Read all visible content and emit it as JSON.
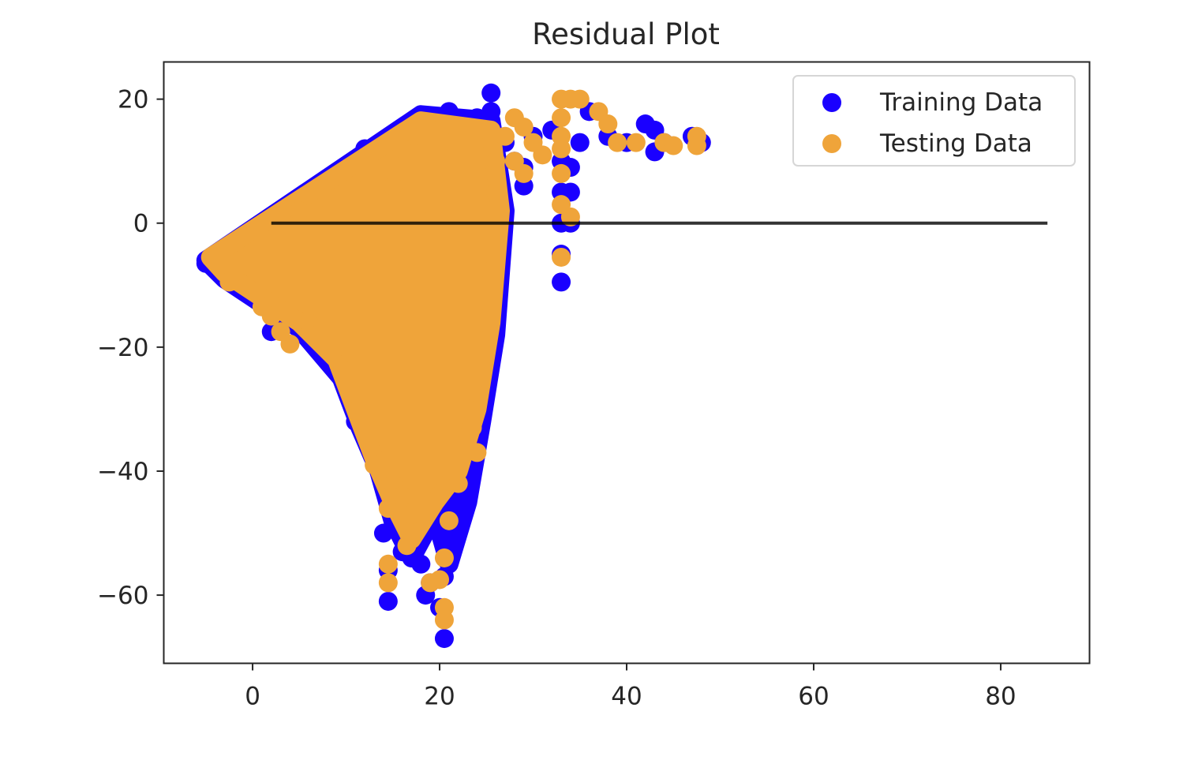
{
  "chart_data": {
    "type": "scatter",
    "title": "Residual Plot",
    "xlabel": "",
    "ylabel": "",
    "xlim": [
      -9.5,
      89.5
    ],
    "ylim": [
      -71,
      26
    ],
    "xticks": [
      0,
      20,
      40,
      60,
      80
    ],
    "yticks": [
      20,
      0,
      -20,
      -40,
      -60
    ],
    "xtick_labels": [
      "0",
      "20",
      "40",
      "60",
      "80"
    ],
    "ytick_labels": [
      "20",
      "0",
      "−20",
      "−40",
      "−60"
    ],
    "grid": false,
    "legend_position": "top-right",
    "hline": {
      "y": 0,
      "xmin": 2,
      "xmax": 85,
      "color": "#000000"
    },
    "series": [
      {
        "name": "Training Data",
        "color": "#1a00ff",
        "points": [
          [
            -5,
            -6.5
          ],
          [
            -4,
            -7
          ],
          [
            -3,
            -8.5
          ],
          [
            -1,
            -9
          ],
          [
            1,
            -12
          ],
          [
            3,
            -15
          ],
          [
            2,
            -17.5
          ],
          [
            5,
            -16
          ],
          [
            7,
            -18
          ],
          [
            8,
            -21
          ],
          [
            10,
            -23
          ],
          [
            11,
            -27
          ],
          [
            11,
            -32
          ],
          [
            13,
            -30
          ],
          [
            13,
            -35
          ],
          [
            14,
            -38
          ],
          [
            14,
            -42
          ],
          [
            14,
            -50
          ],
          [
            14.5,
            -56
          ],
          [
            14.5,
            -61
          ],
          [
            15,
            -45
          ],
          [
            16,
            -48
          ],
          [
            16,
            -53
          ],
          [
            18,
            -40
          ],
          [
            18,
            -48
          ],
          [
            18,
            -55
          ],
          [
            18.5,
            -60
          ],
          [
            19,
            -58
          ],
          [
            20,
            -62
          ],
          [
            20.5,
            -67
          ],
          [
            20.5,
            -57
          ],
          [
            21,
            -49
          ],
          [
            22,
            -45
          ],
          [
            22,
            -40
          ],
          [
            23,
            -44
          ],
          [
            22,
            -35
          ],
          [
            23,
            -37
          ],
          [
            24,
            -27
          ],
          [
            25,
            -23
          ],
          [
            25,
            -18
          ],
          [
            25.5,
            -12
          ],
          [
            25.5,
            -6
          ],
          [
            26,
            0
          ],
          [
            26,
            5
          ],
          [
            25.5,
            10
          ],
          [
            25.5,
            15
          ],
          [
            25.5,
            18
          ],
          [
            25.5,
            21
          ],
          [
            21,
            18
          ],
          [
            24,
            17
          ],
          [
            27,
            13
          ],
          [
            28,
            10
          ],
          [
            29,
            6
          ],
          [
            29,
            9
          ],
          [
            30,
            14
          ],
          [
            32,
            15
          ],
          [
            33,
            10
          ],
          [
            33,
            5
          ],
          [
            33,
            0
          ],
          [
            33,
            -5
          ],
          [
            33,
            -9.5
          ],
          [
            34,
            0
          ],
          [
            34,
            5
          ],
          [
            34,
            9
          ],
          [
            35,
            13
          ],
          [
            36,
            18
          ],
          [
            38,
            14
          ],
          [
            40,
            13
          ],
          [
            42,
            16
          ],
          [
            43,
            11.5
          ],
          [
            43,
            15
          ],
          [
            44,
            13
          ],
          [
            47,
            14
          ],
          [
            48,
            13
          ],
          [
            12,
            12
          ],
          [
            10,
            6
          ],
          [
            16,
            14
          ],
          [
            18,
            16
          ],
          [
            20,
            10
          ],
          [
            22,
            5
          ]
        ]
      },
      {
        "name": "Testing Data",
        "color": "#efa43a",
        "points": [
          [
            -4,
            -6
          ],
          [
            -2,
            -8
          ],
          [
            -2.5,
            -9.5
          ],
          [
            0,
            -7
          ],
          [
            0.5,
            -11
          ],
          [
            1,
            -13.5
          ],
          [
            2,
            -15
          ],
          [
            3,
            -17.5
          ],
          [
            4,
            -19.5
          ],
          [
            6,
            -16
          ],
          [
            7,
            -18
          ],
          [
            9,
            -20
          ],
          [
            10,
            -24
          ],
          [
            11,
            -27.5
          ],
          [
            12,
            -30
          ],
          [
            13,
            -34
          ],
          [
            13,
            -39
          ],
          [
            14,
            -40
          ],
          [
            14.5,
            -46
          ],
          [
            14.5,
            -55
          ],
          [
            14.5,
            -58
          ],
          [
            15,
            -42
          ],
          [
            16,
            -44
          ],
          [
            17,
            -47
          ],
          [
            17,
            -50
          ],
          [
            16.5,
            -52
          ],
          [
            18,
            -41
          ],
          [
            19,
            -45
          ],
          [
            19,
            -58
          ],
          [
            20,
            -57.5
          ],
          [
            20.5,
            -62
          ],
          [
            20.5,
            -64
          ],
          [
            20.5,
            -54
          ],
          [
            21,
            -48
          ],
          [
            21.5,
            -40
          ],
          [
            22,
            -36
          ],
          [
            22,
            -42
          ],
          [
            23,
            -30
          ],
          [
            23.5,
            -33
          ],
          [
            24,
            -37
          ],
          [
            24,
            -25
          ],
          [
            24,
            -19
          ],
          [
            25,
            -16
          ],
          [
            25,
            -10
          ],
          [
            25.5,
            -5
          ],
          [
            26,
            5
          ],
          [
            26,
            10
          ],
          [
            27,
            14
          ],
          [
            28,
            17
          ],
          [
            29,
            15.5
          ],
          [
            30,
            13
          ],
          [
            31,
            11
          ],
          [
            28,
            10
          ],
          [
            29,
            8
          ],
          [
            33,
            20
          ],
          [
            33,
            17
          ],
          [
            33,
            14
          ],
          [
            33,
            12
          ],
          [
            33,
            8
          ],
          [
            33,
            3
          ],
          [
            33,
            -5.5
          ],
          [
            34,
            1
          ],
          [
            34,
            20
          ],
          [
            35,
            20
          ],
          [
            37,
            18
          ],
          [
            38,
            16
          ],
          [
            39,
            13
          ],
          [
            41,
            13
          ],
          [
            44,
            13
          ],
          [
            45,
            12.5
          ],
          [
            47.5,
            14
          ],
          [
            47.5,
            12.5
          ],
          [
            16,
            12
          ],
          [
            18,
            14
          ],
          [
            20,
            15
          ],
          [
            22,
            14
          ],
          [
            23,
            15
          ],
          [
            12,
            8
          ],
          [
            8,
            4
          ],
          [
            5,
            2
          ],
          [
            15,
            6
          ],
          [
            19,
            3
          ]
        ]
      }
    ],
    "filled_region": {
      "series": "Testing Data",
      "description_points": [
        [
          -4.5,
          -5.5
        ],
        [
          18,
          16.5
        ],
        [
          25.5,
          15
        ],
        [
          26.5,
          2
        ],
        [
          25.5,
          -16
        ],
        [
          24,
          -30
        ],
        [
          22,
          -40
        ],
        [
          19.5,
          -45
        ],
        [
          17,
          -51
        ],
        [
          15,
          -45
        ],
        [
          13,
          -38
        ],
        [
          11,
          -30
        ],
        [
          9,
          -22
        ],
        [
          5,
          -16
        ],
        [
          1,
          -12
        ],
        [
          -3,
          -8
        ]
      ]
    },
    "filled_region_training": {
      "series": "Training Data",
      "description_points": [
        [
          -5,
          -6
        ],
        [
          18,
          17.5
        ],
        [
          25.5,
          16.5
        ],
        [
          27,
          2
        ],
        [
          26,
          -18
        ],
        [
          24.5,
          -32
        ],
        [
          23,
          -45
        ],
        [
          21,
          -55
        ],
        [
          19.5,
          -47
        ],
        [
          17,
          -54
        ],
        [
          15,
          -48
        ],
        [
          13.5,
          -40
        ],
        [
          11.5,
          -33
        ],
        [
          9.5,
          -25
        ],
        [
          5,
          -17
        ],
        [
          1,
          -13
        ],
        [
          -3,
          -9
        ]
      ]
    }
  }
}
